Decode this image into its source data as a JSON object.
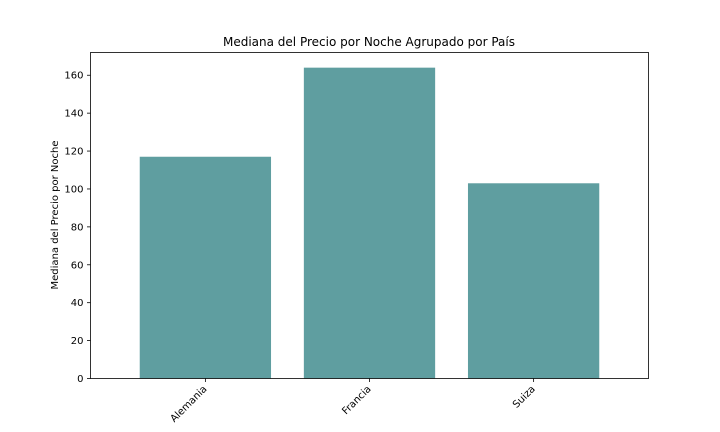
{
  "chart_data": {
    "type": "bar",
    "title": "Mediana del Precio por Noche Agrupado por País",
    "xlabel": "",
    "ylabel": "Mediana del Precio por Noche",
    "categories": [
      "Alemania",
      "Francia",
      "Suiza"
    ],
    "values": [
      117,
      164,
      103
    ],
    "ylim": [
      0,
      172
    ],
    "yticks": [
      0,
      20,
      40,
      60,
      80,
      100,
      120,
      140,
      160
    ],
    "bar_color": "#5f9ea0",
    "grid": false,
    "legend": "none"
  }
}
